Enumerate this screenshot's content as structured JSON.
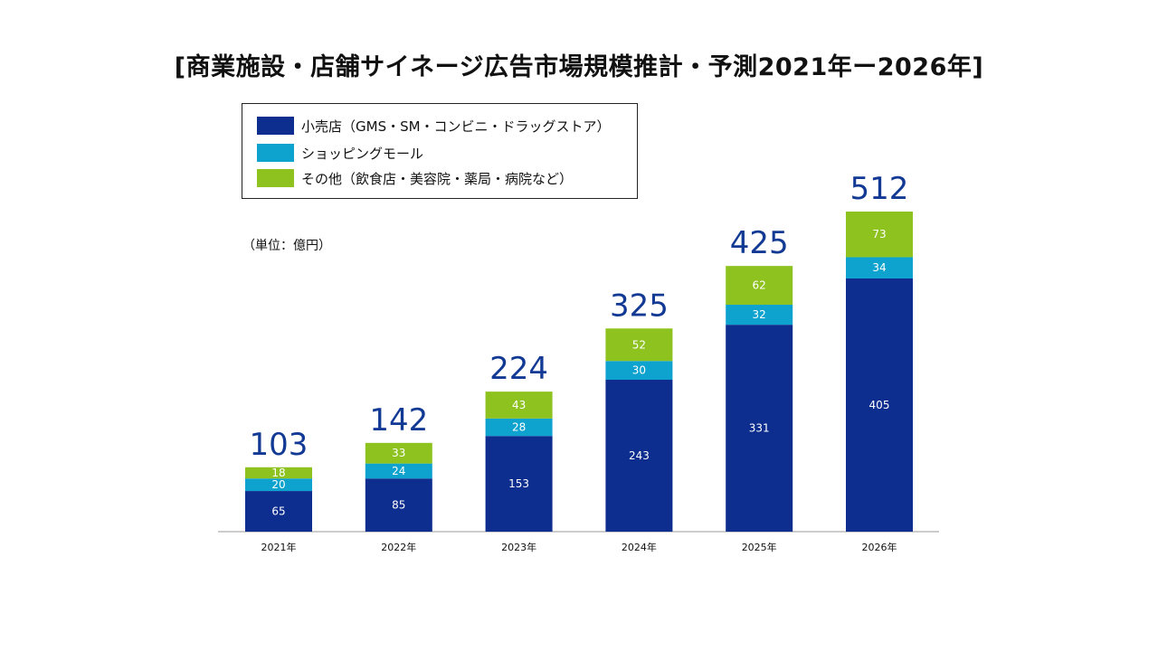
{
  "chart_data": {
    "type": "bar",
    "stacked": true,
    "title": "[商業施設・店舗サイネージ広告市場規模推計・予測2021年ー2026年]",
    "unit_label": "（単位：億円）",
    "categories": [
      "2021年",
      "2022年",
      "2023年",
      "2024年",
      "2025年",
      "2026年"
    ],
    "series": [
      {
        "name": "小売店（GMS・SM・コンビニ・ドラッグストア）",
        "color": "#0d2d8f",
        "values": [
          65,
          85,
          153,
          243,
          331,
          405
        ]
      },
      {
        "name": "ショッピングモール",
        "color": "#0ea2cf",
        "values": [
          20,
          24,
          28,
          30,
          32,
          34
        ]
      },
      {
        "name": "その他（飲食店・美容院・薬局・病院など）",
        "color": "#8dc21f",
        "values": [
          18,
          33,
          43,
          52,
          62,
          73
        ]
      }
    ],
    "totals": [
      103,
      142,
      224,
      325,
      425,
      512
    ],
    "total_label_color": "#123a94",
    "ylim": [
      0,
      512
    ],
    "xlabel": "",
    "ylabel": "",
    "grid": false,
    "legend_position": "top-left"
  }
}
